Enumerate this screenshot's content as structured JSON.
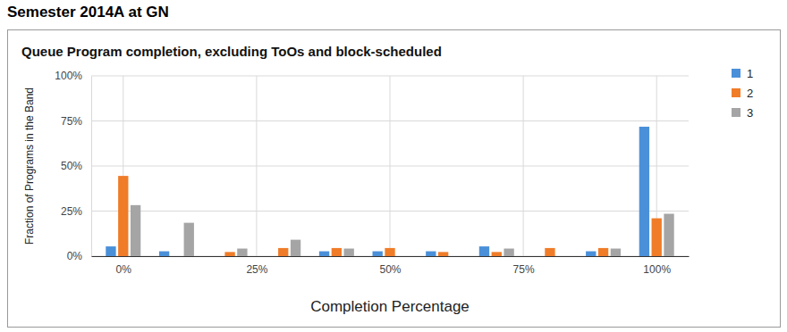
{
  "page_title": "Semester 2014A at GN",
  "chart_data": {
    "type": "bar",
    "title": "Queue Program completion, excluding ToOs and block-scheduled",
    "x_label": "Completion Percentage",
    "y_label": "Fraction of Programs in the Band",
    "x": [
      0,
      10,
      20,
      30,
      40,
      50,
      60,
      70,
      80,
      90,
      100
    ],
    "series": [
      {
        "name": "1",
        "color": "#4a90d9",
        "values": [
          5.4,
          2.7,
          0,
          0,
          2.7,
          2.7,
          2.7,
          5.4,
          0,
          2.7,
          71.8
        ]
      },
      {
        "name": "2",
        "color": "#f07c28",
        "values": [
          44.5,
          0,
          2.3,
          4.5,
          4.5,
          4.5,
          2.3,
          2.3,
          4.5,
          4.5,
          21
        ]
      },
      {
        "name": "3",
        "color": "#a5a5a5",
        "values": [
          28.3,
          18.5,
          4.2,
          9.1,
          4.2,
          0,
          0,
          4.2,
          0,
          4.2,
          23.5
        ]
      }
    ],
    "xlim": [
      -6,
      106
    ],
    "xticks": [
      {
        "value": 0,
        "label": "0%"
      },
      {
        "value": 25,
        "label": "25%"
      },
      {
        "value": 50,
        "label": "50%"
      },
      {
        "value": 75,
        "label": "75%"
      },
      {
        "value": 100,
        "label": "100%"
      }
    ],
    "ylim": [
      0,
      100
    ],
    "yticks": [
      {
        "value": 0,
        "label": "0%"
      },
      {
        "value": 25,
        "label": "25%"
      },
      {
        "value": 50,
        "label": "50%"
      },
      {
        "value": 75,
        "label": "75%"
      },
      {
        "value": 100,
        "label": "100%"
      }
    ],
    "grid": true,
    "legend": "right"
  }
}
